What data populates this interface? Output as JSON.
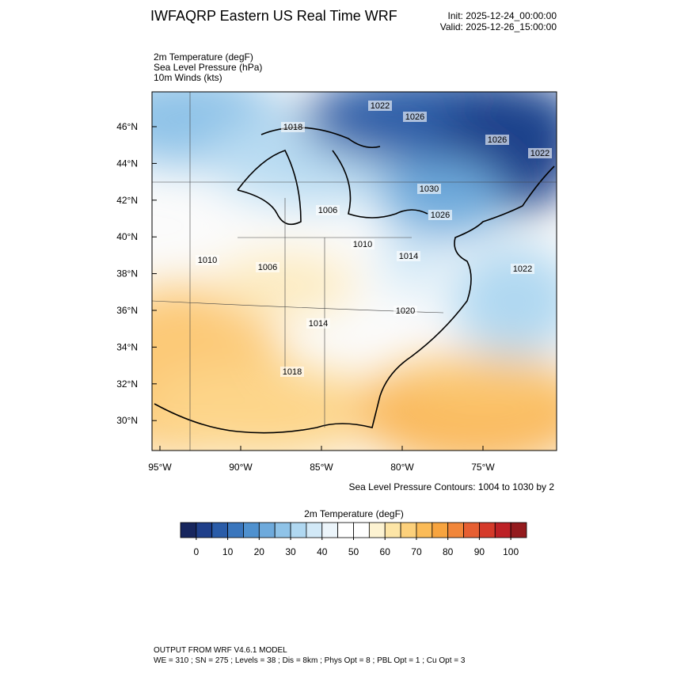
{
  "header": {
    "title": "IWFAQRP Eastern US Real Time WRF",
    "init": "Init: 2025-12-24_00:00:00",
    "valid": "Valid: 2025-12-26_15:00:00"
  },
  "fields": [
    "2m Temperature   (degF)",
    "Sea Level Pressure   (hPa)",
    "10m Winds   (kts)"
  ],
  "map": {
    "lat_ticks": [
      {
        "value": 46,
        "label": "46°N"
      },
      {
        "value": 44,
        "label": "44°N"
      },
      {
        "value": 42,
        "label": "42°N"
      },
      {
        "value": 40,
        "label": "40°N"
      },
      {
        "value": 38,
        "label": "38°N"
      },
      {
        "value": 36,
        "label": "36°N"
      },
      {
        "value": 34,
        "label": "34°N"
      },
      {
        "value": 32,
        "label": "32°N"
      },
      {
        "value": 30,
        "label": "30°N"
      }
    ],
    "lon_ticks": [
      {
        "value": -95,
        "label": "95°W"
      },
      {
        "value": -90,
        "label": "90°W"
      },
      {
        "value": -85,
        "label": "85°W"
      },
      {
        "value": -80,
        "label": "80°W"
      },
      {
        "value": -75,
        "label": "75°W"
      }
    ],
    "isobar_labels": [
      "1022",
      "1026",
      "1018",
      "1026",
      "1030",
      "1026",
      "1022",
      "1006",
      "1010",
      "1014",
      "1010",
      "1006",
      "1022",
      "1020",
      "1014",
      "1018"
    ],
    "contour_caption": "Sea Level Pressure Contours: 1004 to 1030 by 2"
  },
  "colorbar": {
    "title": "2m Temperature  (degF)",
    "lim": [
      -5,
      105
    ],
    "ticks": [
      0,
      10,
      20,
      30,
      40,
      50,
      60,
      70,
      80,
      90,
      100
    ],
    "colors": [
      "#17265e",
      "#1f3f8a",
      "#2a5ca8",
      "#3a76bd",
      "#4f91cf",
      "#6eaadc",
      "#8fc3e8",
      "#b0d8f1",
      "#d2e9f7",
      "#ecf5fb",
      "#ffffff",
      "#ffffff",
      "#fdf3d2",
      "#fde5a6",
      "#fcd07b",
      "#fbbb57",
      "#f7a43f",
      "#f1863a",
      "#e65f32",
      "#d53a2a",
      "#bd2126",
      "#941b1e"
    ]
  },
  "footer": {
    "line1": "OUTPUT FROM WRF V4.6.1 MODEL",
    "line2": "WE = 310 ; SN = 275 ; Levels = 38 ; Dis = 8km ; Phys Opt = 8 ; PBL Opt = 1 ; Cu Opt = 3"
  }
}
